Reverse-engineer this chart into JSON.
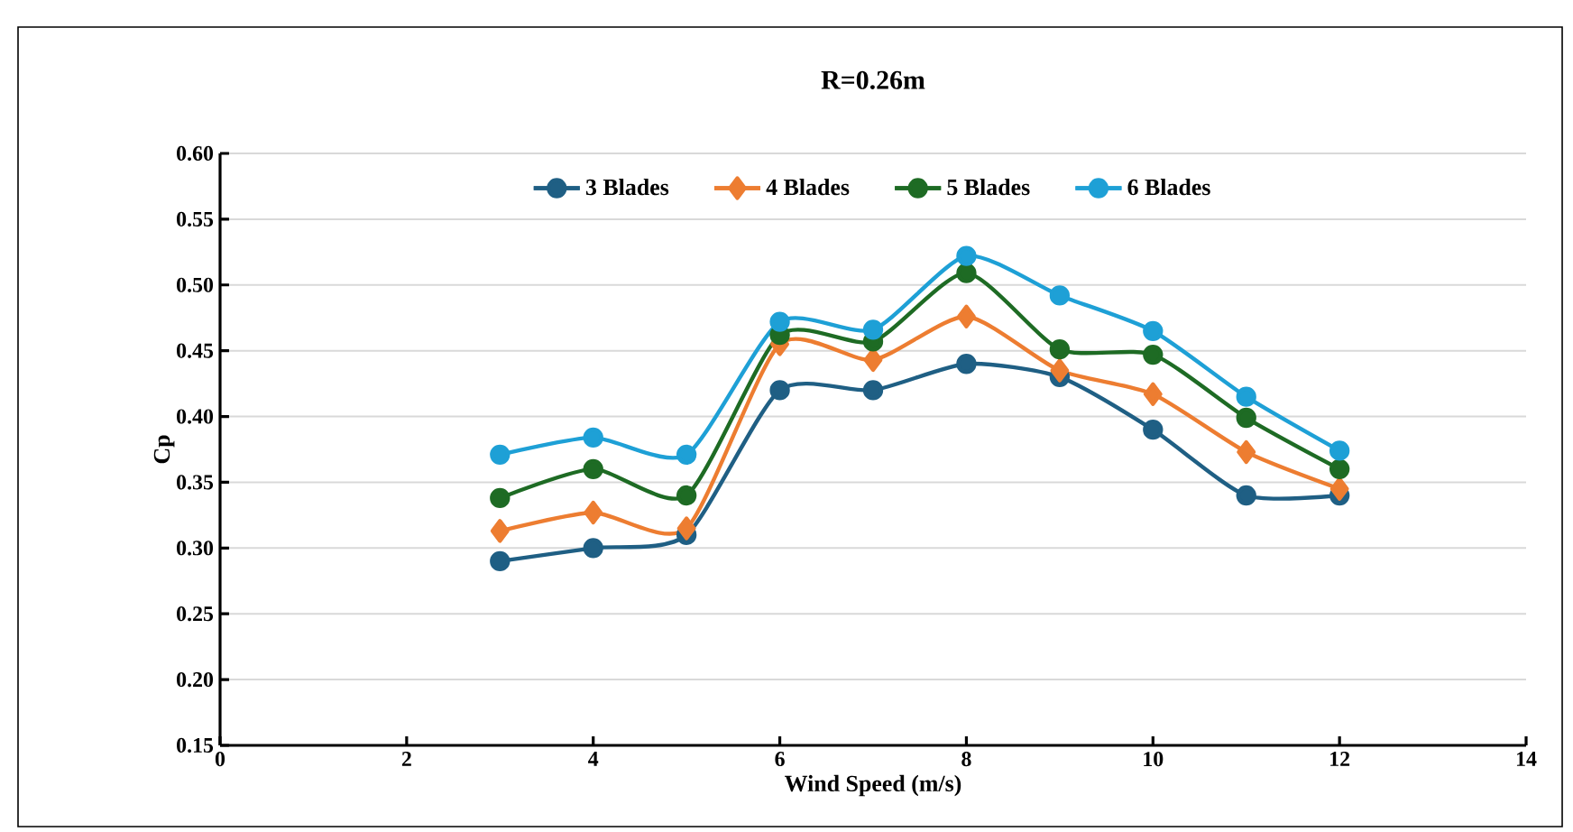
{
  "chart_data": {
    "type": "line",
    "title": "R=0.26m",
    "xlabel": "Wind Speed (m/s)",
    "ylabel": "Cp",
    "x": [
      3,
      4,
      5,
      6,
      7,
      8,
      9,
      10,
      11,
      12
    ],
    "series": [
      {
        "name": "3 Blades",
        "color": "#1f5f84",
        "marker": "circle",
        "values": [
          0.29,
          0.3,
          0.31,
          0.42,
          0.42,
          0.44,
          0.43,
          0.39,
          0.34,
          0.34
        ]
      },
      {
        "name": "4 Blades",
        "color": "#ed7d31",
        "marker": "diamond",
        "values": [
          0.313,
          0.327,
          0.315,
          0.455,
          0.443,
          0.476,
          0.435,
          0.417,
          0.373,
          0.345
        ]
      },
      {
        "name": "5 Blades",
        "color": "#1e6b24",
        "marker": "circle",
        "values": [
          0.338,
          0.36,
          0.34,
          0.462,
          0.457,
          0.509,
          0.451,
          0.447,
          0.399,
          0.36
        ]
      },
      {
        "name": "6 Blades",
        "color": "#1ea0d6",
        "marker": "circle",
        "values": [
          0.371,
          0.384,
          0.371,
          0.472,
          0.466,
          0.522,
          0.492,
          0.465,
          0.415,
          0.374
        ]
      }
    ],
    "xlim": [
      0,
      14
    ],
    "xticks": [
      0,
      2,
      4,
      6,
      8,
      10,
      12,
      14
    ],
    "ylim": [
      0.15,
      0.6
    ],
    "yticks": [
      {
        "value": 0.15,
        "label": "0.15"
      },
      {
        "value": 0.2,
        "label": "0.20"
      },
      {
        "value": 0.25,
        "label": "0.25"
      },
      {
        "value": 0.3,
        "label": "0.30"
      },
      {
        "value": 0.35,
        "label": "0.35"
      },
      {
        "value": 0.4,
        "label": "0.40"
      },
      {
        "value": 0.45,
        "label": "0.45"
      },
      {
        "value": 0.5,
        "label": "0.50"
      },
      {
        "value": 0.55,
        "label": "0.55"
      },
      {
        "value": 0.6,
        "label": "0.60"
      }
    ],
    "grid": "y",
    "legend": "top",
    "line_style": "solid"
  }
}
